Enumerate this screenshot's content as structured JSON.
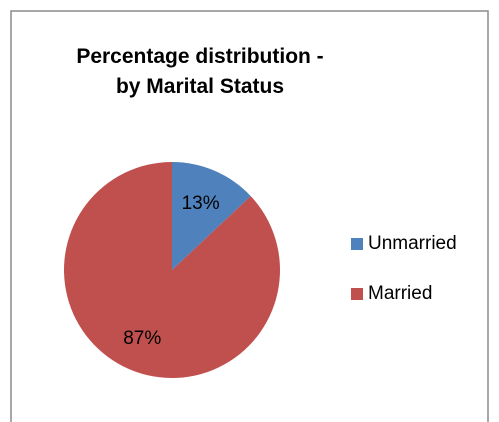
{
  "chart_data": {
    "type": "pie",
    "title": "Percentage distribution - by Marital Status",
    "categories": [
      "Unmarried",
      "Married"
    ],
    "values": [
      13,
      87
    ],
    "value_labels": [
      "13%",
      "87%"
    ],
    "colors": [
      "#4f81bd",
      "#c0504d"
    ],
    "legend": "right"
  }
}
